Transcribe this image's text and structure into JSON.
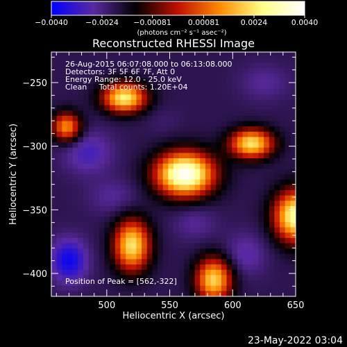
{
  "chart_data": {
    "type": "heatmap",
    "title": "Reconstructed RHESSI Image",
    "xlabel": "Heliocentric X (arcsec)",
    "ylabel": "Heliocentric Y (arcsec)",
    "xlim": [
      456,
      650
    ],
    "ylim": [
      -418,
      -226
    ],
    "xticks": [
      500,
      550,
      600,
      650
    ],
    "yticks": [
      -250,
      -300,
      -350,
      -400
    ],
    "colorbar": {
      "range": [
        -0.004,
        0.004
      ],
      "ticks": [
        "-0.0040",
        "-0.0024",
        "-0.00081",
        "0.00081",
        "0.0024",
        "0.0040"
      ],
      "units": "(photons cm⁻² s⁻¹ asec⁻²)",
      "colormap": [
        "#0000ff",
        "#5a2aa0",
        "#000000",
        "#c01000",
        "#ff8c00",
        "#ffff88",
        "#ffffff"
      ]
    },
    "annotations": [
      "26-Aug-2015 06:07:08.000 to 06:13:08.000",
      "Detectors: 3F 5F 6F 7F, Att 0",
      "Energy Range: 12.0 - 25.0 keV",
      "Clean     Total counts: 1.20E+04"
    ],
    "peak_label": "Position of Peak = [562,-322]",
    "peak": {
      "x": 562,
      "y": -322
    },
    "sources": [
      {
        "x": 562,
        "y": -322,
        "value": 0.004,
        "sx": 16,
        "sy": 12
      },
      {
        "x": 650,
        "y": -355,
        "value": 0.003,
        "sx": 12,
        "sy": 14
      },
      {
        "x": 514,
        "y": -262,
        "value": 0.0026,
        "sx": 12,
        "sy": 8
      },
      {
        "x": 615,
        "y": -298,
        "value": 0.0024,
        "sx": 12,
        "sy": 8
      },
      {
        "x": 520,
        "y": -378,
        "value": 0.0024,
        "sx": 10,
        "sy": 14
      },
      {
        "x": 585,
        "y": -405,
        "value": 0.0022,
        "sx": 10,
        "sy": 12
      },
      {
        "x": 468,
        "y": -285,
        "value": 0.0014,
        "sx": 8,
        "sy": 8
      },
      {
        "x": 485,
        "y": -305,
        "value": -0.003,
        "sx": 14,
        "sy": 12
      },
      {
        "x": 470,
        "y": -390,
        "value": -0.0038,
        "sx": 10,
        "sy": 12
      },
      {
        "x": 610,
        "y": -385,
        "value": -0.0028,
        "sx": 12,
        "sy": 12
      },
      {
        "x": 625,
        "y": -250,
        "value": -0.0026,
        "sx": 14,
        "sy": 10
      },
      {
        "x": 505,
        "y": -340,
        "value": -0.0026,
        "sx": 14,
        "sy": 10
      },
      {
        "x": 570,
        "y": -360,
        "value": -0.0026,
        "sx": 12,
        "sy": 10
      },
      {
        "x": 545,
        "y": -280,
        "value": -0.0022,
        "sx": 10,
        "sy": 8
      }
    ],
    "background": -0.002
  },
  "footer": {
    "date": "23-May-2022 03:04"
  }
}
